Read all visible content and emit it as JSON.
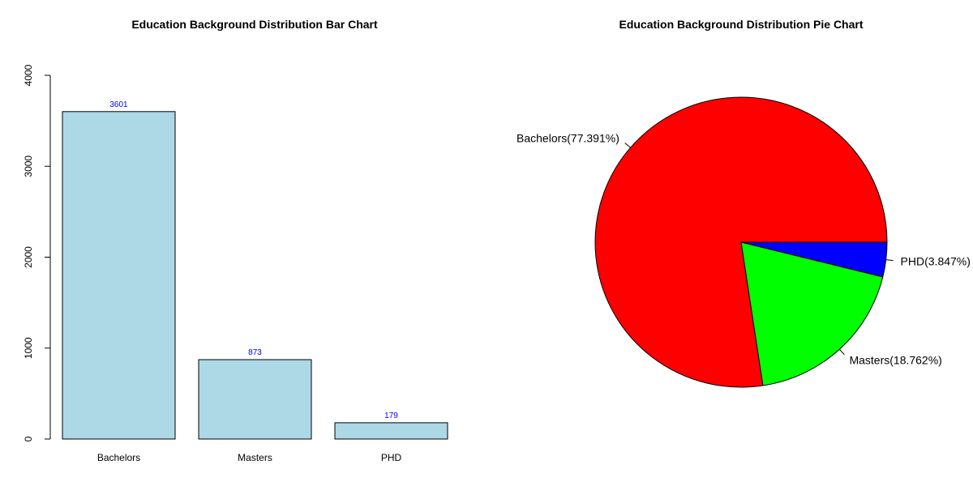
{
  "chart_data": [
    {
      "type": "bar",
      "title": "Education Background Distribution Bar Chart",
      "categories": [
        "Bachelors",
        "Masters",
        "PHD"
      ],
      "values": [
        3601,
        873,
        179
      ],
      "data_labels": [
        "3601",
        "873",
        "179"
      ],
      "ylim": [
        0,
        4000
      ],
      "y_ticks": [
        0,
        1000,
        2000,
        3000,
        4000
      ],
      "y_tick_labels": [
        "0",
        "1000",
        "2000",
        "3000",
        "4000"
      ],
      "xlabel": "",
      "ylabel": "",
      "grid": false,
      "bar_color": "#add8e6",
      "data_label_color": "#0000ff"
    },
    {
      "type": "pie",
      "title": "Education Background Distribution Pie Chart",
      "slices": [
        {
          "category": "Bachelors",
          "percent": 77.391,
          "label": "Bachelors(77.391%)",
          "color": "#ff0000"
        },
        {
          "category": "Masters",
          "percent": 18.762,
          "label": "Masters(18.762%)",
          "color": "#00ff00"
        },
        {
          "category": "PHD",
          "percent": 3.847,
          "label": "PHD(3.847%)",
          "color": "#0000ff"
        }
      ]
    }
  ]
}
